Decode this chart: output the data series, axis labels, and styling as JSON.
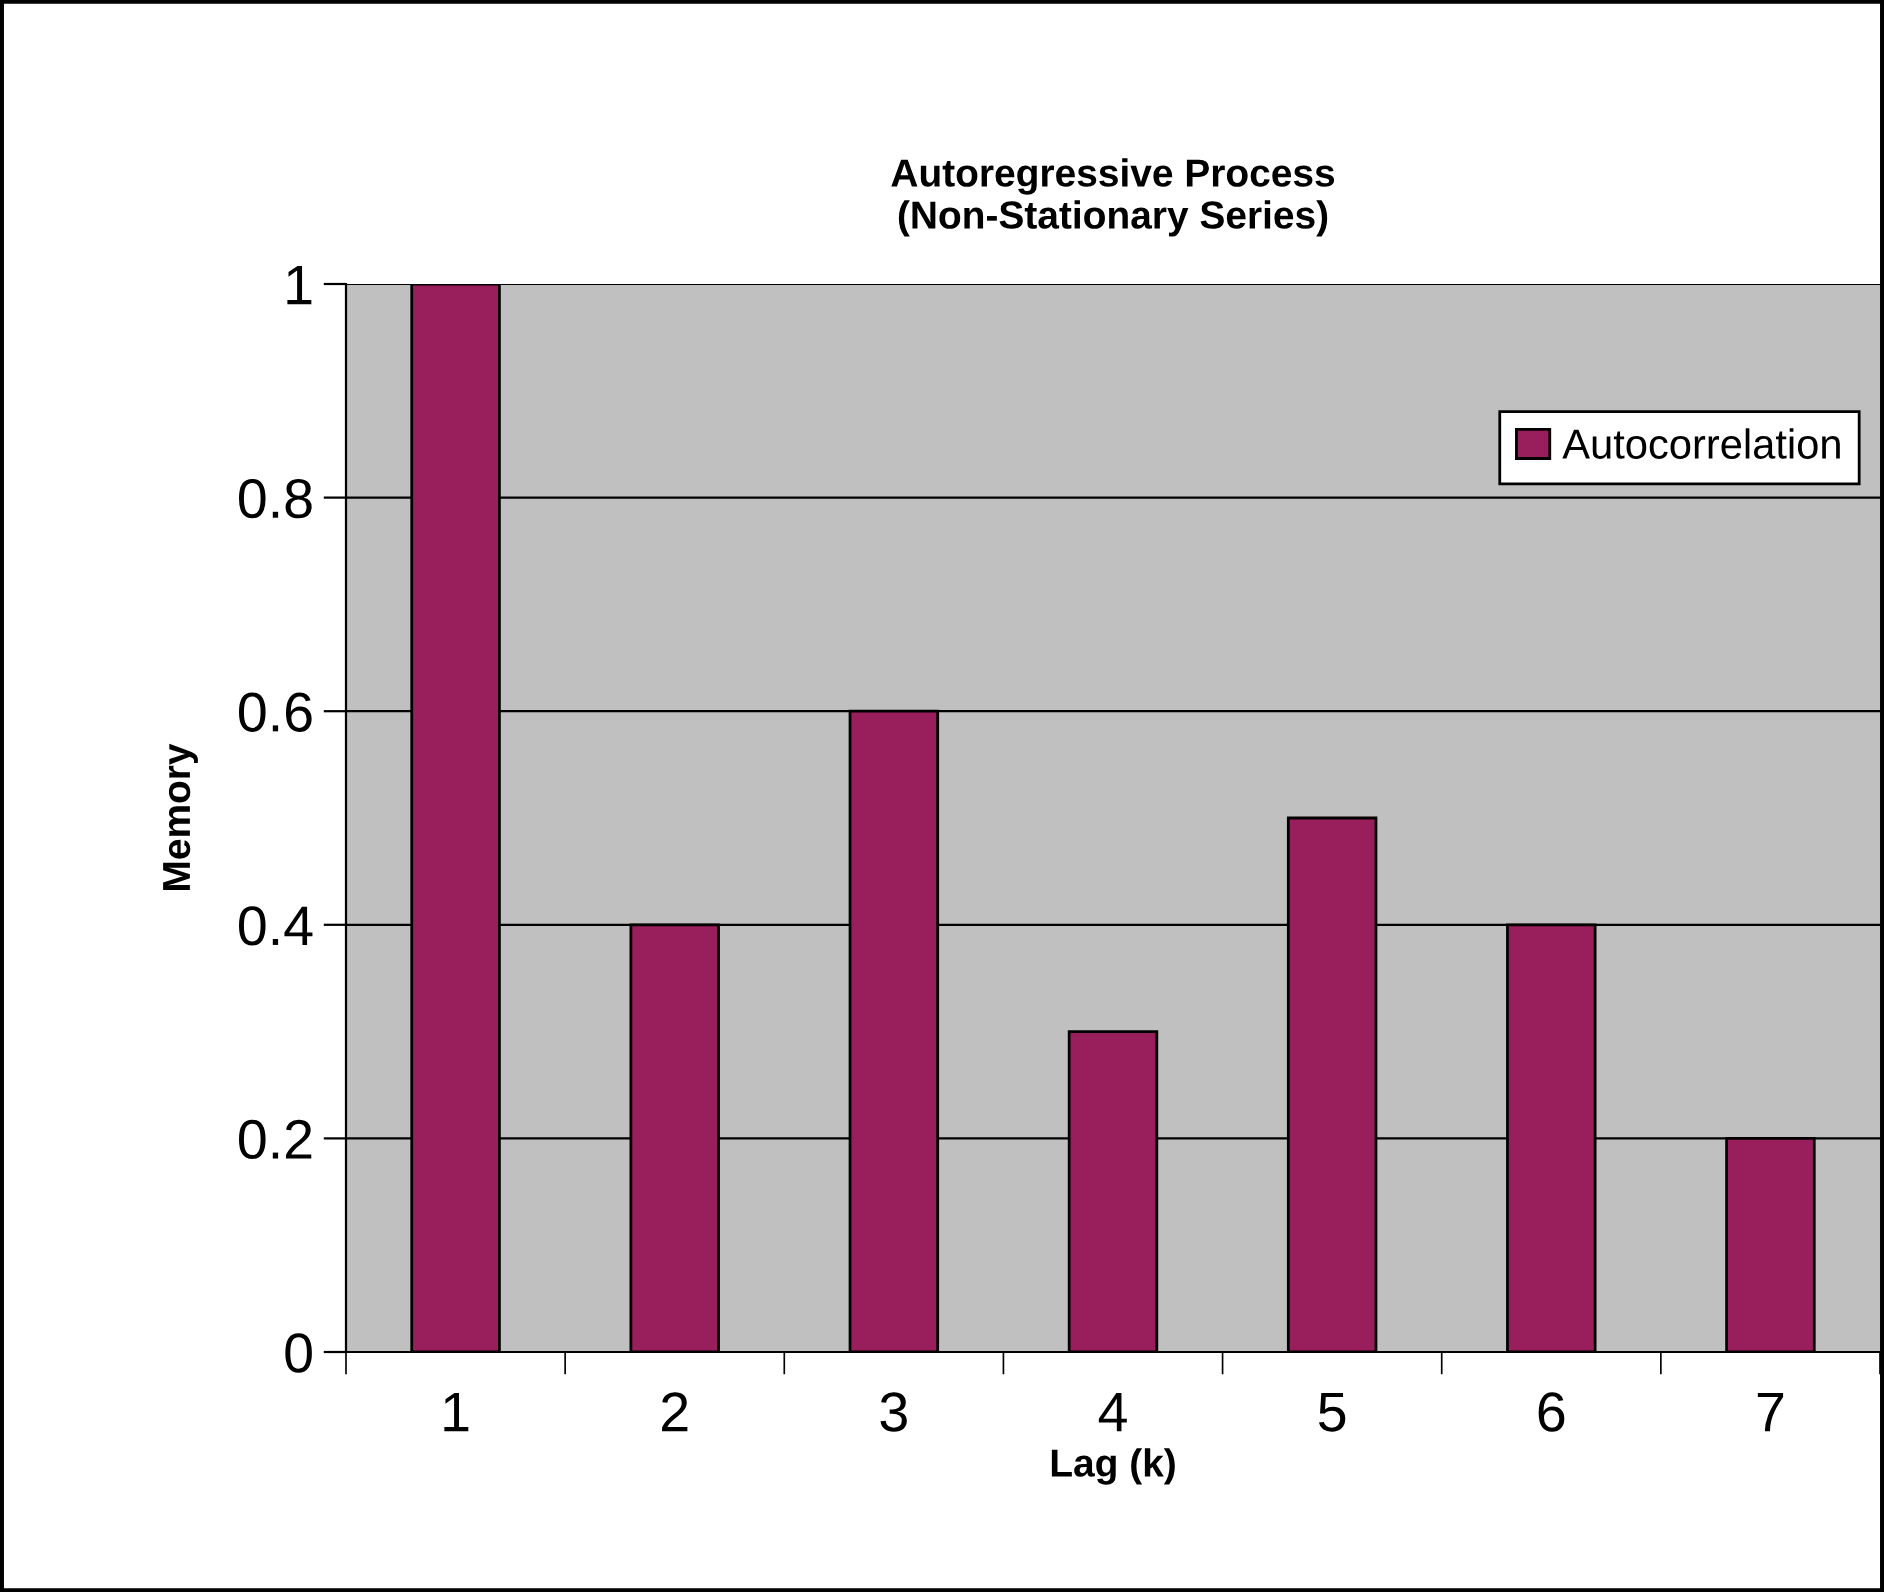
{
  "chart_data": {
    "type": "bar",
    "title": "Autoregressive Process\n(Non-Stationary Series)",
    "xlabel": "Lag (k)",
    "ylabel": "Memory",
    "categories": [
      "1",
      "2",
      "3",
      "4",
      "5",
      "6",
      "7"
    ],
    "series": [
      {
        "name": "Autocorrelation",
        "color": "#991f5c",
        "values": [
          1,
          0.4,
          0.6,
          0.3,
          0.5,
          0.4,
          0.2
        ]
      }
    ],
    "ylim": [
      0,
      1
    ],
    "yticks": [
      0,
      0.2,
      0.4,
      0.6,
      0.8,
      1
    ],
    "grid": "y",
    "legend": "top right"
  }
}
